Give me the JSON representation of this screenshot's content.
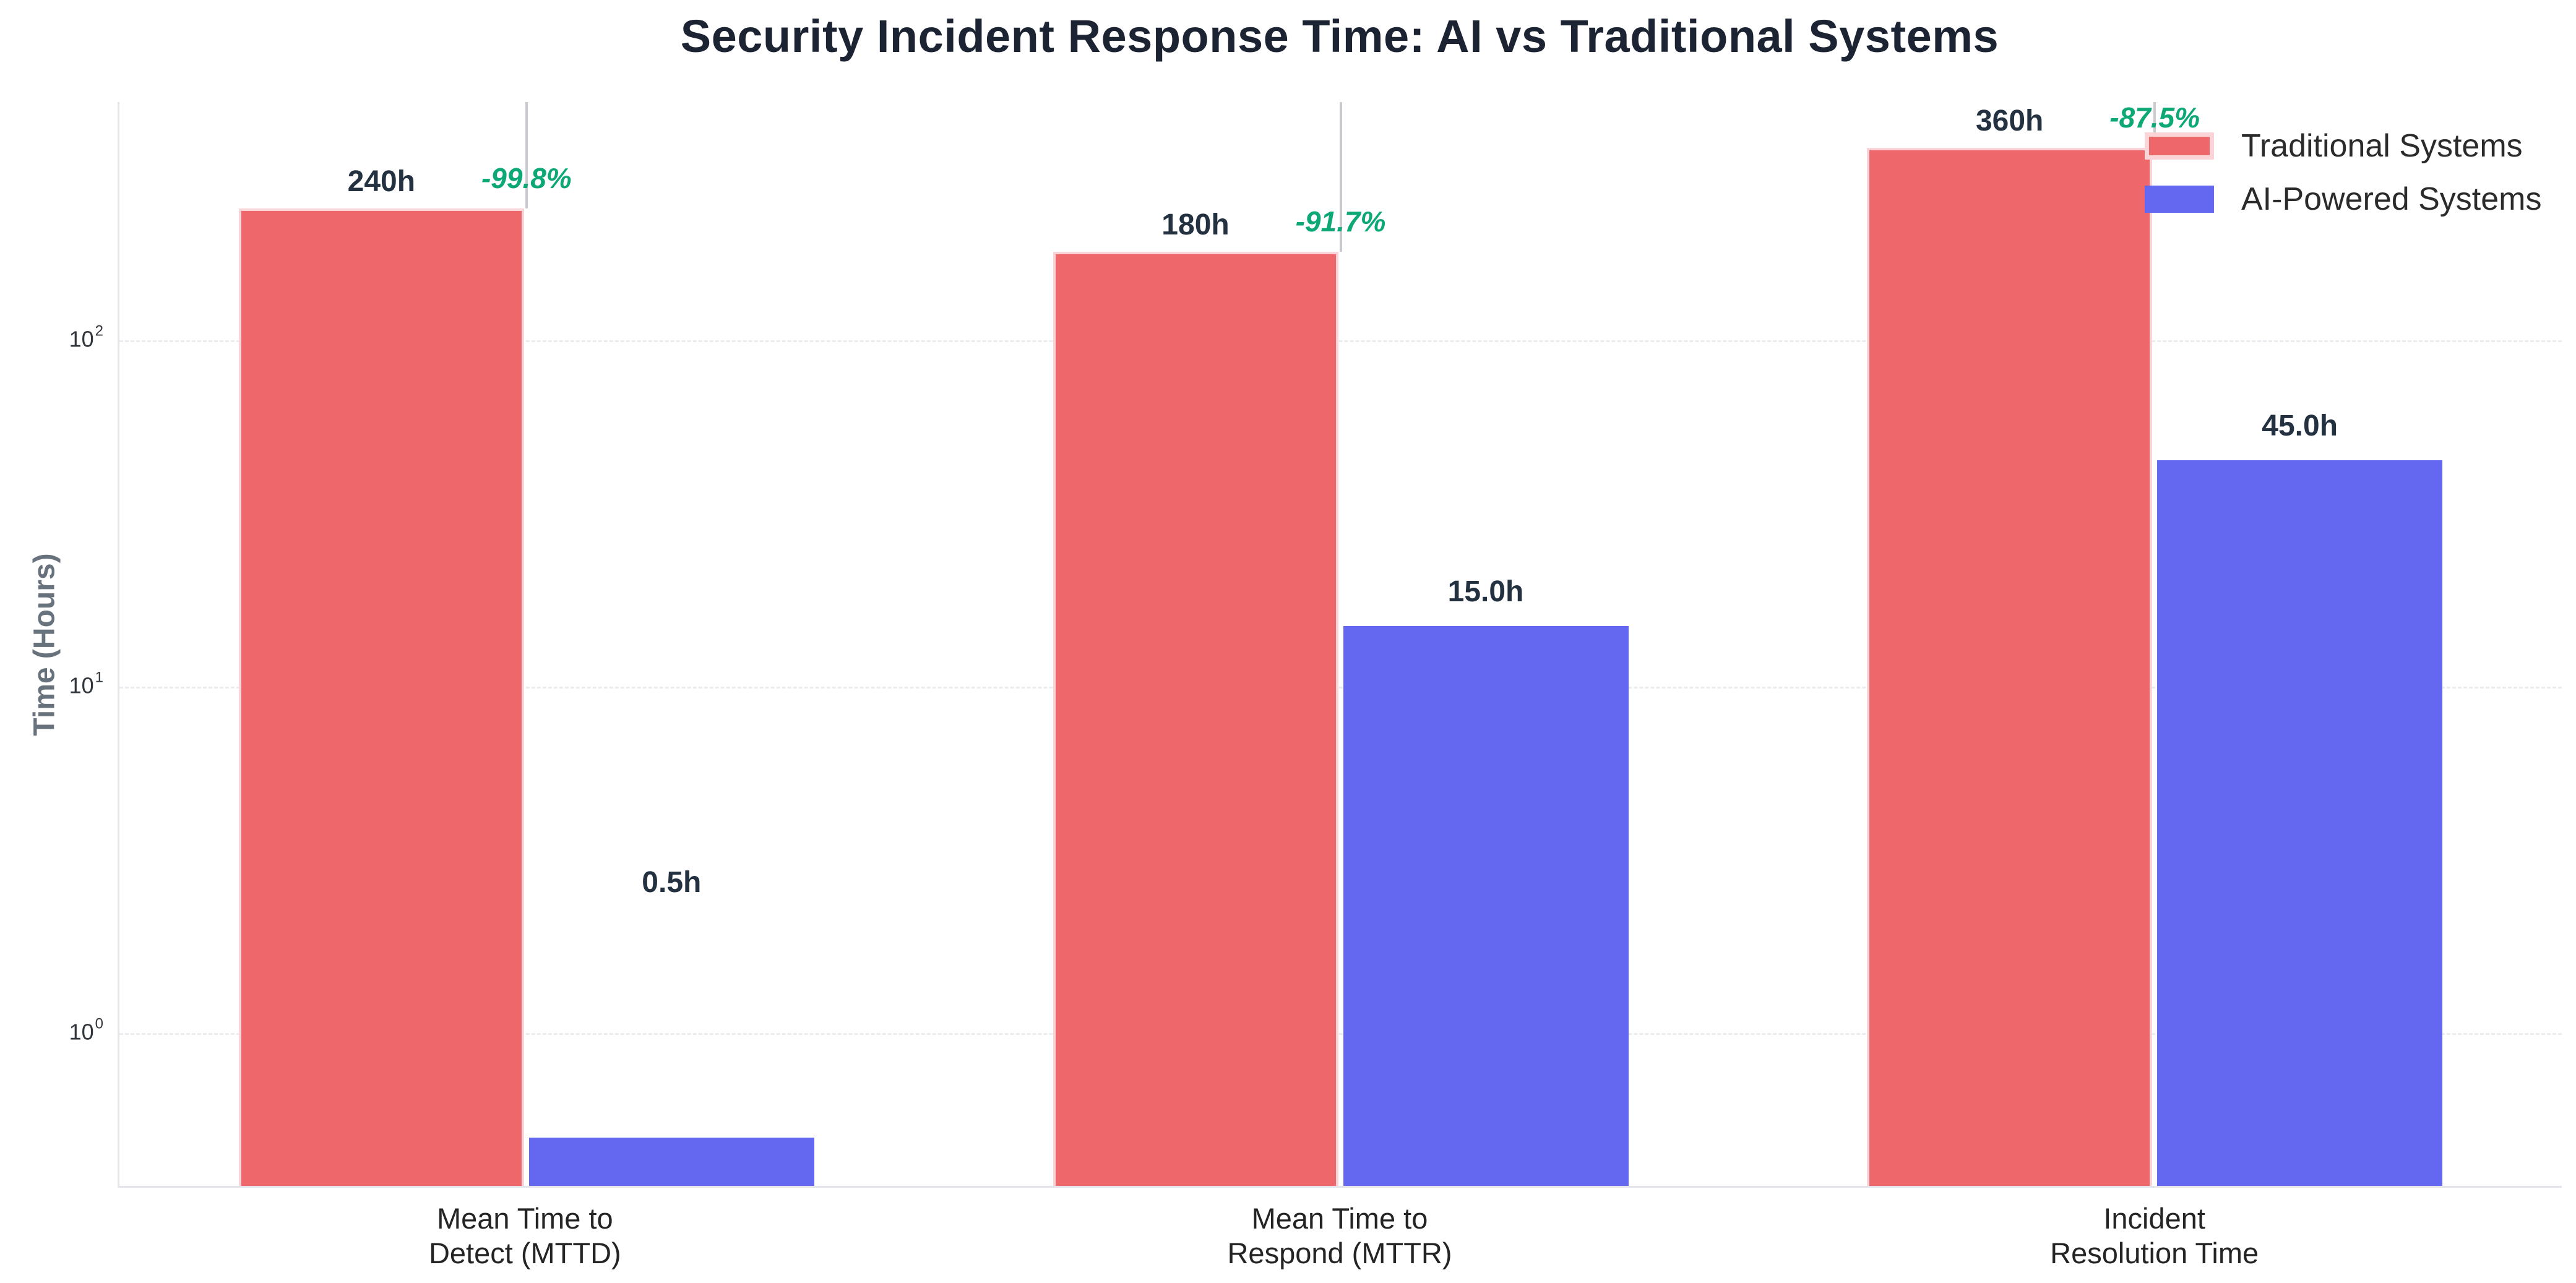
{
  "title": "Security Incident Response Time: AI vs Traditional Systems",
  "chart_data": {
    "type": "bar",
    "title": "Security Incident Response Time: AI vs Traditional Systems",
    "xlabel": "",
    "ylabel": "Time (Hours)",
    "yscale": "log",
    "ylim": [
      0.363,
      487
    ],
    "grid": "horizontal-dashed",
    "legend_position": "top-right",
    "background": "#ffffff",
    "categories": [
      [
        "Mean Time to",
        "Detect (MTTD)"
      ],
      [
        "Mean Time to",
        "Respond (MTTR)"
      ],
      [
        "Incident",
        "Resolution Time"
      ]
    ],
    "yticks": [
      {
        "base": "10",
        "exp": "2",
        "value": 100
      },
      {
        "base": "10",
        "exp": "1",
        "value": 10
      },
      {
        "base": "10",
        "exp": "0",
        "value": 1
      }
    ],
    "series": [
      {
        "name": "Traditional Systems",
        "color": "#ed676b",
        "values": [
          240,
          180,
          360
        ],
        "value_labels": [
          "240h",
          "180h",
          "360h"
        ]
      },
      {
        "name": "AI-Powered Systems",
        "color": "#6467f0",
        "values": [
          0.5,
          15,
          45
        ],
        "value_labels": [
          "0.5h",
          "15.0h",
          "45.0h"
        ]
      }
    ],
    "reduction_annotations": [
      {
        "label": "-99.8%"
      },
      {
        "label": "-91.7%"
      },
      {
        "label": "-87.5%"
      }
    ],
    "annotation_color": "#0ea877"
  },
  "colors": {
    "traditional_bar": "#ed676b",
    "ai_bar": "#6467f0",
    "annotation_green": "#0ea877",
    "title_text": "#1c2433",
    "value_label_text": "#233140",
    "axis_title_text": "#68727d",
    "tick_text": "#31373d",
    "gridline": "#ebecf0",
    "spine": "#e4e4ea",
    "connector_line": "#c9c9cf"
  }
}
